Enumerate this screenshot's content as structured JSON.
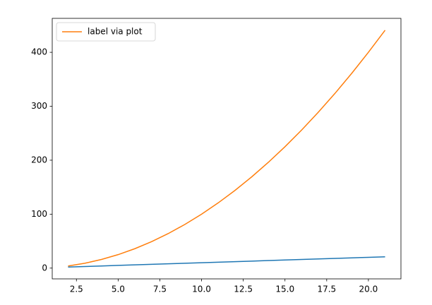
{
  "chart_data": {
    "type": "line",
    "x": [
      2,
      3,
      4,
      5,
      6,
      7,
      8,
      9,
      10,
      11,
      12,
      13,
      14,
      15,
      16,
      17,
      18,
      19,
      20,
      21
    ],
    "series": [
      {
        "color": "#1f77b4",
        "values": [
          2,
          3,
          4,
          5,
          6,
          7,
          8,
          9,
          10,
          11,
          12,
          13,
          14,
          15,
          16,
          17,
          18,
          19,
          20,
          21
        ]
      },
      {
        "name": "label via plot",
        "color": "#ff7f0e",
        "values": [
          4,
          9,
          16,
          25,
          36,
          49,
          64,
          81,
          100,
          121,
          144,
          169,
          196,
          225,
          256,
          289,
          324,
          361,
          400,
          441
        ]
      }
    ],
    "xlim": [
      1.05,
      21.95
    ],
    "xticks": [
      2.5,
      {
        "value": 5,
        "label": "5.0"
      },
      7.5,
      {
        "value": 10,
        "label": "10.0"
      },
      12.5,
      {
        "value": 15,
        "label": "15.0"
      },
      17.5,
      {
        "value": 20,
        "label": "20.0"
      }
    ],
    "ylim": [
      -19.95,
      462.95
    ],
    "yticks": [
      0,
      100,
      200,
      300,
      400
    ],
    "legend": "upper left"
  }
}
